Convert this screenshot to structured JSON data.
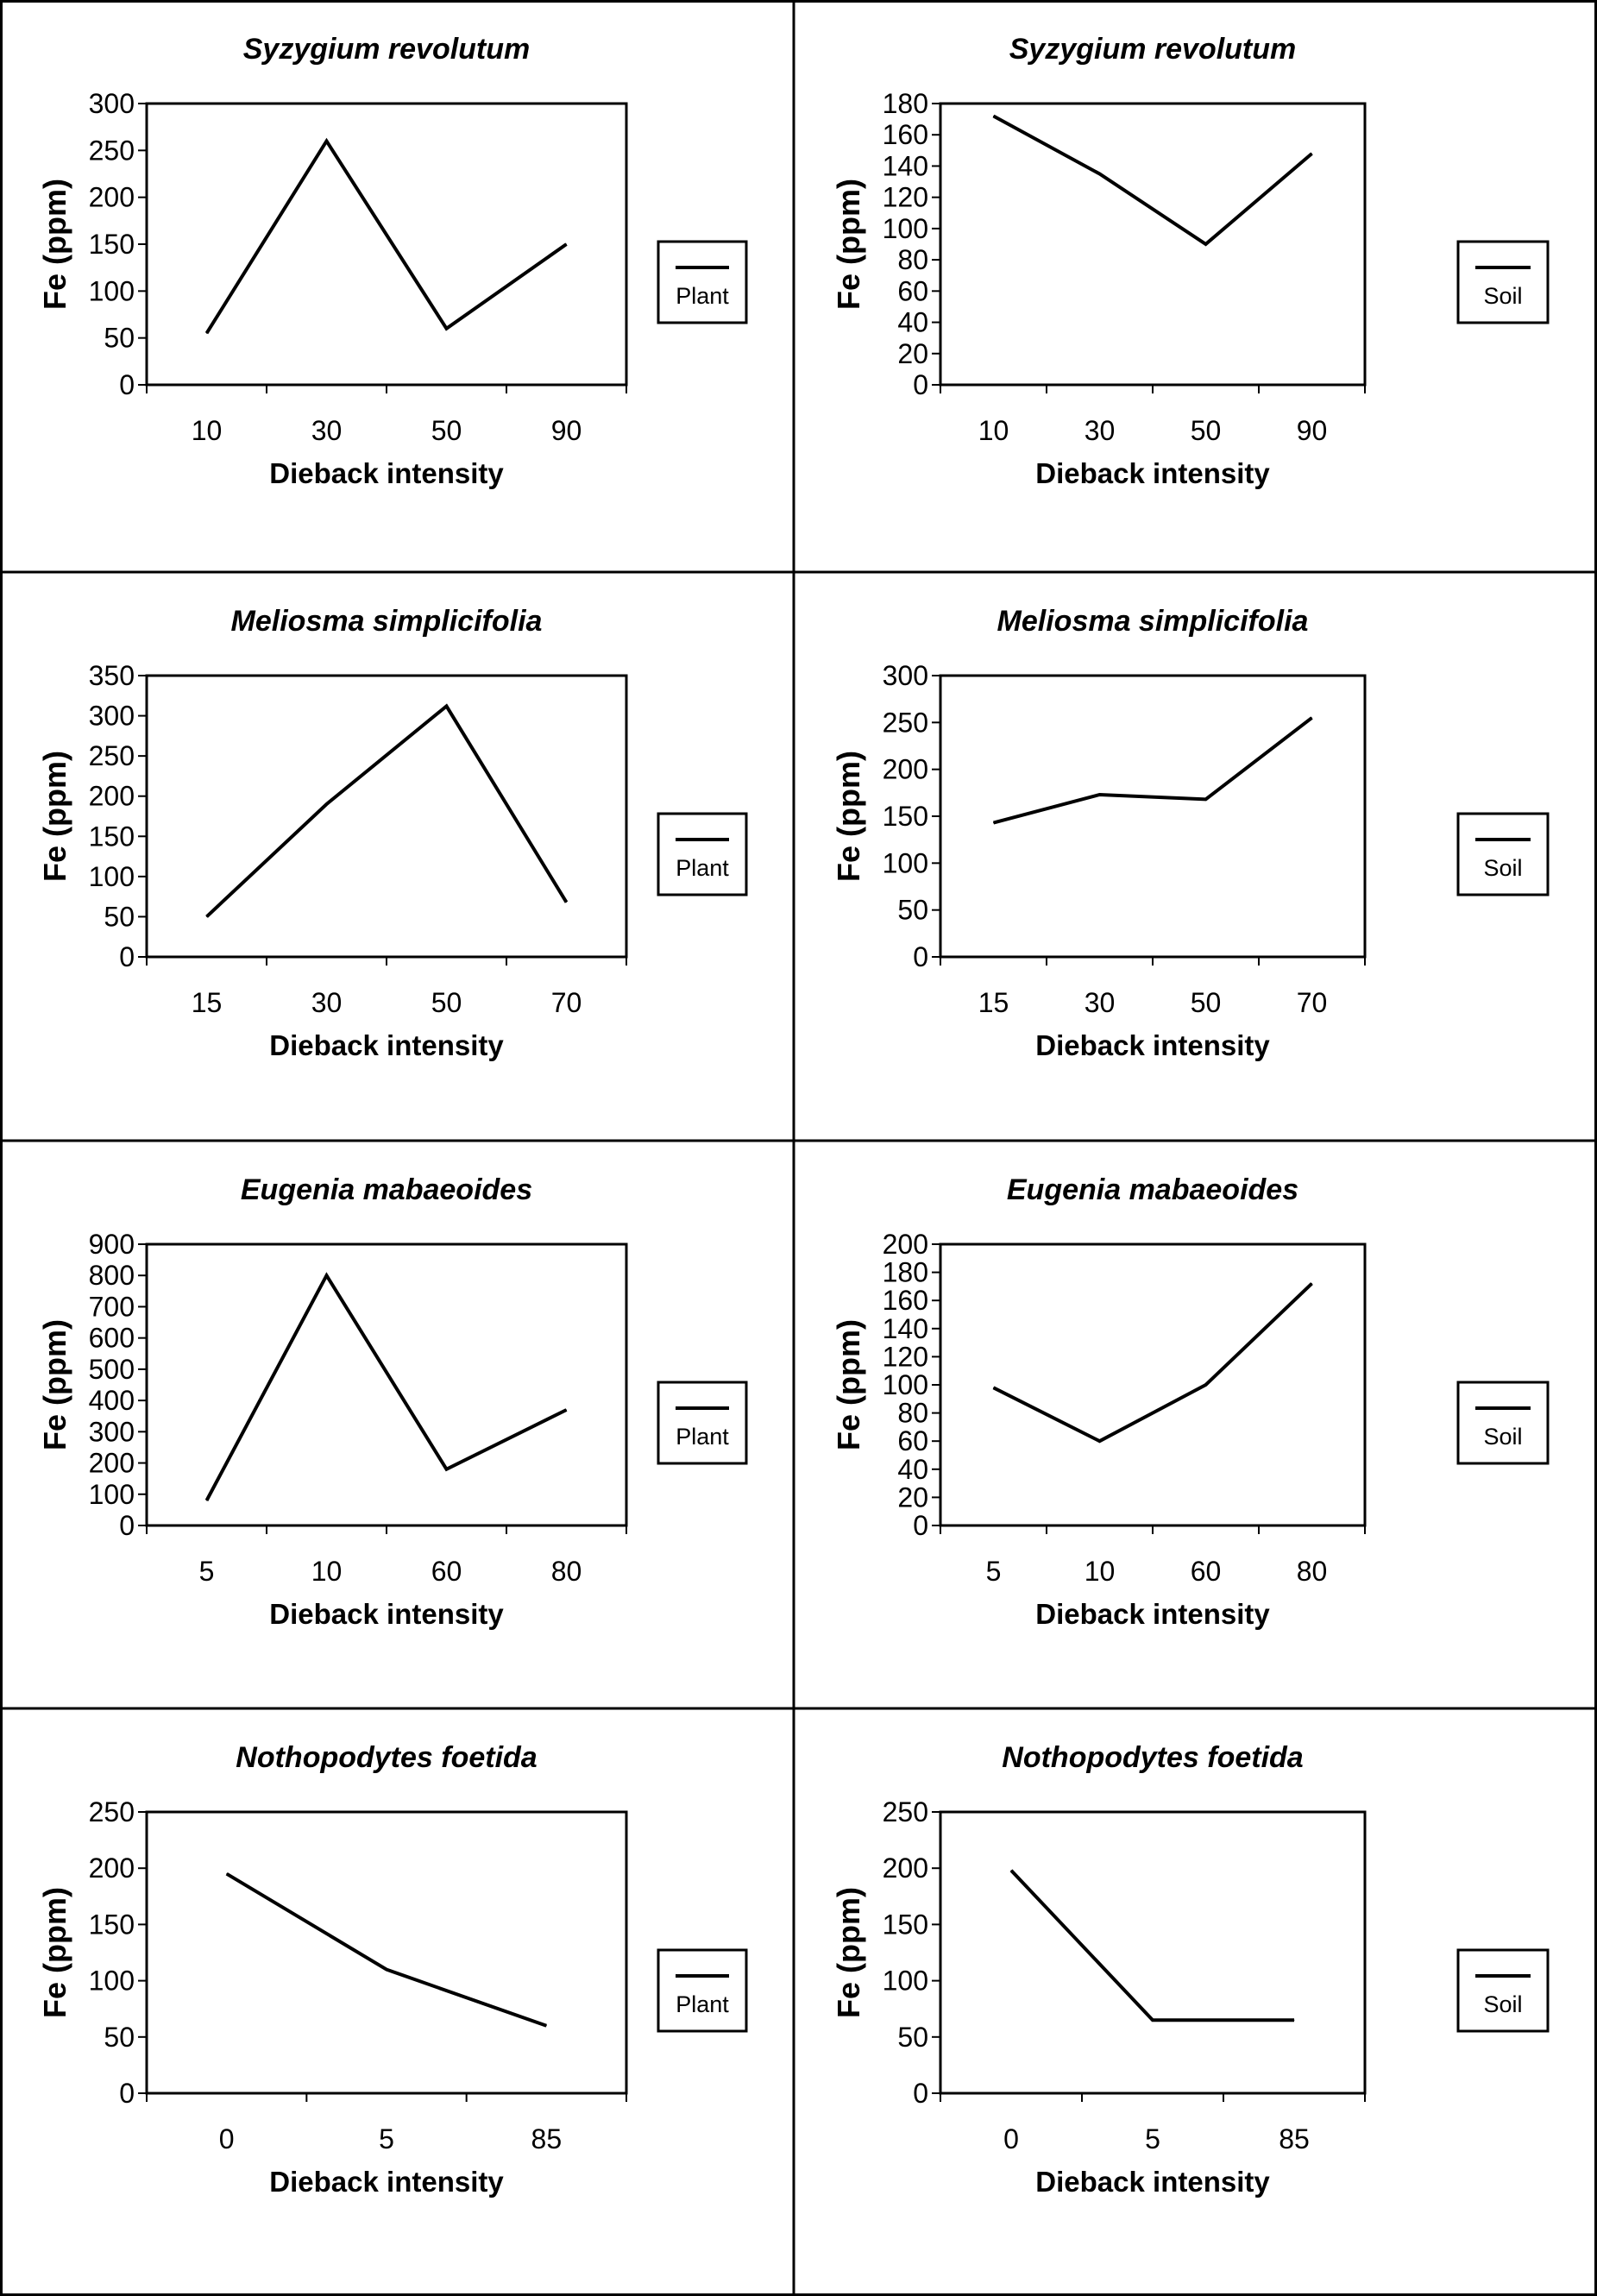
{
  "chart_data": [
    {
      "type": "line",
      "title": "Syzygium revolutum",
      "xlabel": "Dieback intensity",
      "ylabel": "Fe (ppm)",
      "categories": [
        "10",
        "30",
        "50",
        "90"
      ],
      "yticks": [
        0,
        50,
        100,
        150,
        200,
        250,
        300
      ],
      "ylim": [
        0,
        300
      ],
      "series": [
        {
          "name": "Plant",
          "values": [
            55,
            260,
            60,
            150
          ]
        }
      ],
      "legend": "right",
      "grid": false,
      "colors": {
        "line": "#000000"
      }
    },
    {
      "type": "line",
      "title": "Syzygium revolutum",
      "xlabel": "Dieback intensity",
      "ylabel": "Fe (ppm)",
      "categories": [
        "10",
        "30",
        "50",
        "90"
      ],
      "yticks": [
        0,
        20,
        40,
        60,
        80,
        100,
        120,
        140,
        160,
        180
      ],
      "ylim": [
        0,
        180
      ],
      "series": [
        {
          "name": "Soil",
          "values": [
            172,
            135,
            90,
            148
          ]
        }
      ],
      "legend": "right",
      "grid": false,
      "colors": {
        "line": "#000000"
      }
    },
    {
      "type": "line",
      "title": "Meliosma simplicifolia",
      "xlabel": "Dieback intensity",
      "ylabel": "Fe (ppm)",
      "categories": [
        "15",
        "30",
        "50",
        "70"
      ],
      "yticks": [
        0,
        50,
        100,
        150,
        200,
        250,
        300,
        350
      ],
      "ylim": [
        0,
        350
      ],
      "series": [
        {
          "name": "Plant",
          "values": [
            50,
            190,
            312,
            68
          ]
        }
      ],
      "legend": "right",
      "grid": false,
      "colors": {
        "line": "#000000"
      }
    },
    {
      "type": "line",
      "title": "Meliosma simplicifolia",
      "xlabel": "Dieback intensity",
      "ylabel": "Fe (ppm)",
      "categories": [
        "15",
        "30",
        "50",
        "70"
      ],
      "yticks": [
        0,
        50,
        100,
        150,
        200,
        250,
        300
      ],
      "ylim": [
        0,
        300
      ],
      "series": [
        {
          "name": "Soil",
          "values": [
            143,
            173,
            168,
            255
          ]
        }
      ],
      "legend": "right",
      "grid": false,
      "colors": {
        "line": "#000000"
      }
    },
    {
      "type": "line",
      "title": "Eugenia mabaeoides",
      "xlabel": "Dieback intensity",
      "ylabel": "Fe (ppm)",
      "categories": [
        "5",
        "10",
        "60",
        "80"
      ],
      "yticks": [
        0,
        100,
        200,
        300,
        400,
        500,
        600,
        700,
        800,
        900
      ],
      "ylim": [
        0,
        900
      ],
      "series": [
        {
          "name": "Plant",
          "values": [
            80,
            800,
            180,
            370
          ]
        }
      ],
      "legend": "right",
      "grid": false,
      "colors": {
        "line": "#000000"
      }
    },
    {
      "type": "line",
      "title": "Eugenia mabaeoides",
      "xlabel": "Dieback intensity",
      "ylabel": "Fe (ppm)",
      "categories": [
        "5",
        "10",
        "60",
        "80"
      ],
      "yticks": [
        0,
        20,
        40,
        60,
        80,
        100,
        120,
        140,
        160,
        180,
        200
      ],
      "ylim": [
        0,
        200
      ],
      "series": [
        {
          "name": "Soil",
          "values": [
            98,
            60,
            100,
            172
          ]
        }
      ],
      "legend": "right",
      "grid": false,
      "colors": {
        "line": "#000000"
      }
    },
    {
      "type": "line",
      "title": "Nothopodytes foetida",
      "xlabel": "Dieback intensity",
      "ylabel": "Fe (ppm)",
      "categories": [
        "0",
        "5",
        "85"
      ],
      "yticks": [
        0,
        50,
        100,
        150,
        200,
        250
      ],
      "ylim": [
        0,
        250
      ],
      "series": [
        {
          "name": "Plant",
          "values": [
            195,
            110,
            60
          ]
        }
      ],
      "legend": "right",
      "grid": false,
      "colors": {
        "line": "#000000"
      }
    },
    {
      "type": "line",
      "title": "Nothopodytes foetida",
      "xlabel": "Dieback intensity",
      "ylabel": "Fe (ppm)",
      "categories": [
        "0",
        "5",
        "85"
      ],
      "yticks": [
        0,
        50,
        100,
        150,
        200,
        250
      ],
      "ylim": [
        0,
        250
      ],
      "series": [
        {
          "name": "Soil",
          "values": [
            198,
            65,
            65
          ]
        }
      ],
      "legend": "right",
      "grid": false,
      "colors": {
        "line": "#000000"
      }
    }
  ]
}
